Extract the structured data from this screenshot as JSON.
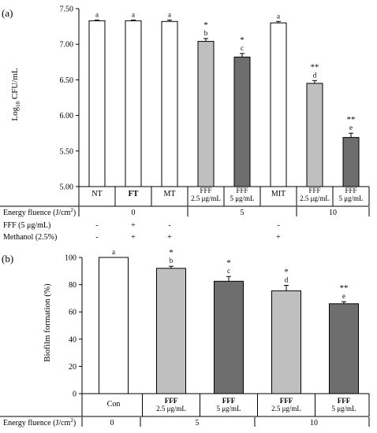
{
  "chart_data": [
    {
      "panel_label": "(a)",
      "type": "bar",
      "ylabel_prefix": "Log",
      "ylabel_sub": "10",
      "ylabel_suffix": " CFU/mL",
      "ylim": [
        5.0,
        7.5
      ],
      "yticks": [
        "5.00",
        "5.50",
        "6.00",
        "6.50",
        "7.00",
        "7.50"
      ],
      "categories": [
        [
          "NT"
        ],
        [
          "FT"
        ],
        [
          "MT"
        ],
        [
          "FFF",
          "2.5 μg/mL"
        ],
        [
          "FFF",
          "5 μg/mL"
        ],
        [
          "MIT"
        ],
        [
          "FFF",
          "2.5 μg/mL"
        ],
        [
          "FFF",
          "5 μg/mL"
        ]
      ],
      "values": [
        7.33,
        7.33,
        7.32,
        7.04,
        6.82,
        7.3,
        6.45,
        5.69
      ],
      "errors": [
        0.01,
        0.01,
        0.02,
        0.04,
        0.05,
        0.02,
        0.04,
        0.06
      ],
      "fills": [
        "white",
        "white",
        "white",
        "light",
        "dark",
        "white",
        "light",
        "dark"
      ],
      "letters": [
        "a",
        "a",
        "a",
        "b",
        "c",
        "a",
        "d",
        "e"
      ],
      "stars": [
        "",
        "",
        "",
        "*",
        "*",
        "",
        "**",
        "**"
      ],
      "conditions": [
        {
          "label": "Energy fluence (J/cm",
          "sup": "2",
          "tail": ")",
          "cells": [
            "0",
            "5",
            "10"
          ]
        },
        {
          "label": "FFF (5 μg/mL)",
          "cells": [
            "-",
            "+",
            "-",
            "",
            "",
            "-"
          ]
        },
        {
          "label": "Methanol (2.5%)",
          "cells": [
            "-",
            "+",
            "+",
            "",
            "",
            "+"
          ]
        }
      ]
    },
    {
      "panel_label": "(b)",
      "type": "bar",
      "ylabel": "Biofilm formation (%)",
      "ylim": [
        0,
        100
      ],
      "yticks": [
        "0",
        "20",
        "40",
        "60",
        "80",
        "100"
      ],
      "categories": [
        [
          "Con"
        ],
        [
          "FFF",
          "2.5 μg/mL"
        ],
        [
          "FFF",
          "5 μg/mL"
        ],
        [
          "FFF",
          "2.5 μg/mL"
        ],
        [
          "FFF",
          "5 μg/mL"
        ]
      ],
      "values": [
        100,
        92,
        82.5,
        75.5,
        66
      ],
      "errors": [
        0,
        1.5,
        3.5,
        4,
        1.5
      ],
      "fills": [
        "white",
        "light",
        "dark",
        "light",
        "dark"
      ],
      "letters": [
        "a",
        "b",
        "c",
        "d",
        "e"
      ],
      "stars": [
        "",
        "*",
        "*",
        "*",
        "**"
      ],
      "conditions": [
        {
          "label": "Energy fluence (J/cm",
          "sup": "2",
          "tail": ")",
          "cells": [
            "0",
            "5",
            "10"
          ]
        }
      ]
    }
  ],
  "colors": {
    "white": "#ffffff",
    "light": "#bfbfbf",
    "dark": "#6e6e6e",
    "line": "#000000",
    "grid": "#000000"
  }
}
